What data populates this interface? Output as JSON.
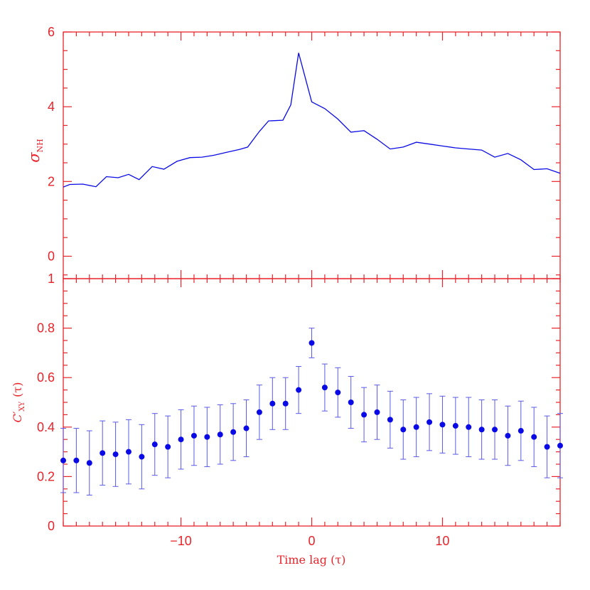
{
  "colors": {
    "axes": "#e8232a",
    "series": "#0a0ae6",
    "errorbar": "#5a5ae8"
  },
  "chart_data": [
    {
      "type": "line",
      "panel": "top",
      "ylabel_symbol": "σ",
      "ylabel_sub": "NH",
      "xlim": [
        -19,
        19
      ],
      "ylim": [
        -0.6,
        6
      ],
      "yticks": [
        0,
        2,
        4,
        6
      ],
      "ytick_labels": [
        "0",
        "2",
        "4",
        "6"
      ],
      "grid": false,
      "x": [
        -19,
        -18.5,
        -17.5,
        -16.5,
        -15.7,
        -14.8,
        -14,
        -13.2,
        -12.2,
        -11.3,
        -10.3,
        -9.3,
        -8.4,
        -7.5,
        -6.5,
        -5.5,
        -4.9,
        -4,
        -3.3,
        -2.2,
        -1.6,
        -1,
        0,
        1,
        2,
        3,
        4,
        5,
        6,
        7,
        8,
        9,
        10,
        11,
        12,
        13,
        14,
        15,
        16,
        17,
        18,
        19
      ],
      "y": [
        1.85,
        1.92,
        1.93,
        1.86,
        2.13,
        2.1,
        2.19,
        2.05,
        2.4,
        2.33,
        2.54,
        2.64,
        2.65,
        2.7,
        2.78,
        2.86,
        2.92,
        3.34,
        3.62,
        3.64,
        4.05,
        5.44,
        4.13,
        3.95,
        3.67,
        3.32,
        3.36,
        3.13,
        2.87,
        2.92,
        3.05,
        3.0,
        2.95,
        2.9,
        2.87,
        2.84,
        2.65,
        2.75,
        2.58,
        2.32,
        2.34,
        2.22
      ]
    },
    {
      "type": "scatter",
      "panel": "bottom",
      "ylabel_main": "C′",
      "ylabel_sub": "XY",
      "ylabel_suffix": "(τ)",
      "xlabel": "Time lag (τ)",
      "xlim": [
        -19,
        19
      ],
      "ylim": [
        0,
        1
      ],
      "xticks": [
        -10,
        0,
        10
      ],
      "xtick_labels": [
        "−10",
        "0",
        "10"
      ],
      "yticks": [
        0,
        0.2,
        0.4,
        0.6,
        0.8,
        1
      ],
      "ytick_labels": [
        "0",
        "0.2",
        "0.4",
        "0.6",
        "0.8",
        "1"
      ],
      "grid": false,
      "x": [
        -19,
        -18,
        -17,
        -16,
        -15,
        -14,
        -13,
        -12,
        -11,
        -10,
        -9,
        -8,
        -7,
        -6,
        -5,
        -4,
        -3,
        -2,
        -1,
        0,
        1,
        2,
        3,
        4,
        5,
        6,
        7,
        8,
        9,
        10,
        11,
        12,
        13,
        14,
        15,
        16,
        17,
        18,
        19
      ],
      "y": [
        0.265,
        0.265,
        0.255,
        0.295,
        0.29,
        0.3,
        0.28,
        0.33,
        0.32,
        0.35,
        0.365,
        0.36,
        0.37,
        0.38,
        0.395,
        0.46,
        0.495,
        0.495,
        0.55,
        0.74,
        0.56,
        0.54,
        0.5,
        0.45,
        0.46,
        0.43,
        0.39,
        0.4,
        0.42,
        0.41,
        0.405,
        0.4,
        0.39,
        0.39,
        0.365,
        0.385,
        0.36,
        0.32,
        0.325
      ],
      "err": [
        0.13,
        0.13,
        0.13,
        0.13,
        0.13,
        0.13,
        0.13,
        0.125,
        0.125,
        0.12,
        0.12,
        0.12,
        0.12,
        0.115,
        0.115,
        0.11,
        0.105,
        0.105,
        0.095,
        0.06,
        0.095,
        0.1,
        0.105,
        0.11,
        0.11,
        0.115,
        0.12,
        0.12,
        0.115,
        0.115,
        0.115,
        0.12,
        0.12,
        0.12,
        0.12,
        0.12,
        0.12,
        0.125,
        0.13
      ]
    }
  ]
}
